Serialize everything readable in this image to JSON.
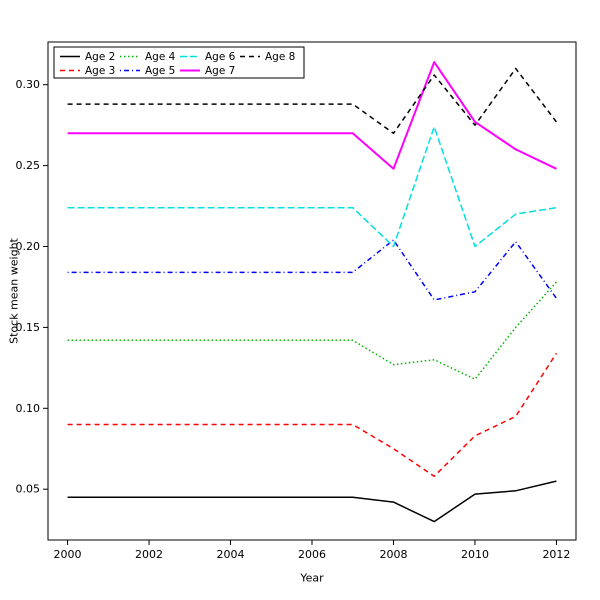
{
  "figure": {
    "background": "#ffffff",
    "axis_color": "#000000"
  },
  "chart_data": {
    "type": "line",
    "title": "",
    "xlabel": "Year",
    "ylabel": "Stock mean weight",
    "grid": false,
    "legend_position": "top-left",
    "legend_columns": 4,
    "legend_rows": 2,
    "x": [
      2000,
      2001,
      2002,
      2003,
      2004,
      2005,
      2006,
      2007,
      2008,
      2009,
      2010,
      2011,
      2012
    ],
    "xticks": [
      2000,
      2002,
      2004,
      2006,
      2008,
      2010,
      2012
    ],
    "yticks": [
      0.05,
      0.1,
      0.15,
      0.2,
      0.25,
      0.3
    ],
    "xlim": [
      1999.52,
      2012.48
    ],
    "ylim": [
      0.0186,
      0.3264
    ],
    "series": [
      {
        "name": "Age 2",
        "color": "#000000",
        "linestyle": "solid",
        "linewidth": 1.5,
        "values": [
          0.045,
          0.045,
          0.045,
          0.045,
          0.045,
          0.045,
          0.045,
          0.045,
          0.042,
          0.03,
          0.047,
          0.049,
          0.055
        ]
      },
      {
        "name": "Age 3",
        "color": "#ff0000",
        "linestyle": "dashed",
        "linewidth": 1.5,
        "values": [
          0.09,
          0.09,
          0.09,
          0.09,
          0.09,
          0.09,
          0.09,
          0.09,
          0.075,
          0.058,
          0.083,
          0.095,
          0.134
        ]
      },
      {
        "name": "Age 4",
        "color": "#00b400",
        "linestyle": "dotted",
        "linewidth": 1.5,
        "values": [
          0.142,
          0.142,
          0.142,
          0.142,
          0.142,
          0.142,
          0.142,
          0.142,
          0.127,
          0.13,
          0.118,
          0.15,
          0.178
        ]
      },
      {
        "name": "Age 5",
        "color": "#0000ff",
        "linestyle": "dotdash",
        "linewidth": 1.5,
        "values": [
          0.184,
          0.184,
          0.184,
          0.184,
          0.184,
          0.184,
          0.184,
          0.184,
          0.204,
          0.167,
          0.172,
          0.203,
          0.168
        ]
      },
      {
        "name": "Age 6",
        "color": "#00e0e0",
        "linestyle": "longdash",
        "linewidth": 1.5,
        "values": [
          0.224,
          0.224,
          0.224,
          0.224,
          0.224,
          0.224,
          0.224,
          0.224,
          0.2,
          0.274,
          0.2,
          0.22,
          0.224
        ]
      },
      {
        "name": "Age 7",
        "color": "#ff00ff",
        "linestyle": "solid",
        "linewidth": 2,
        "values": [
          0.27,
          0.27,
          0.27,
          0.27,
          0.27,
          0.27,
          0.27,
          0.27,
          0.248,
          0.314,
          0.277,
          0.26,
          0.248
        ]
      },
      {
        "name": "Age 8",
        "color": "#000000",
        "linestyle": "dashed",
        "linewidth": 1.5,
        "values": [
          0.288,
          0.288,
          0.288,
          0.288,
          0.288,
          0.288,
          0.288,
          0.288,
          0.27,
          0.306,
          0.275,
          0.31,
          0.277
        ]
      }
    ]
  }
}
